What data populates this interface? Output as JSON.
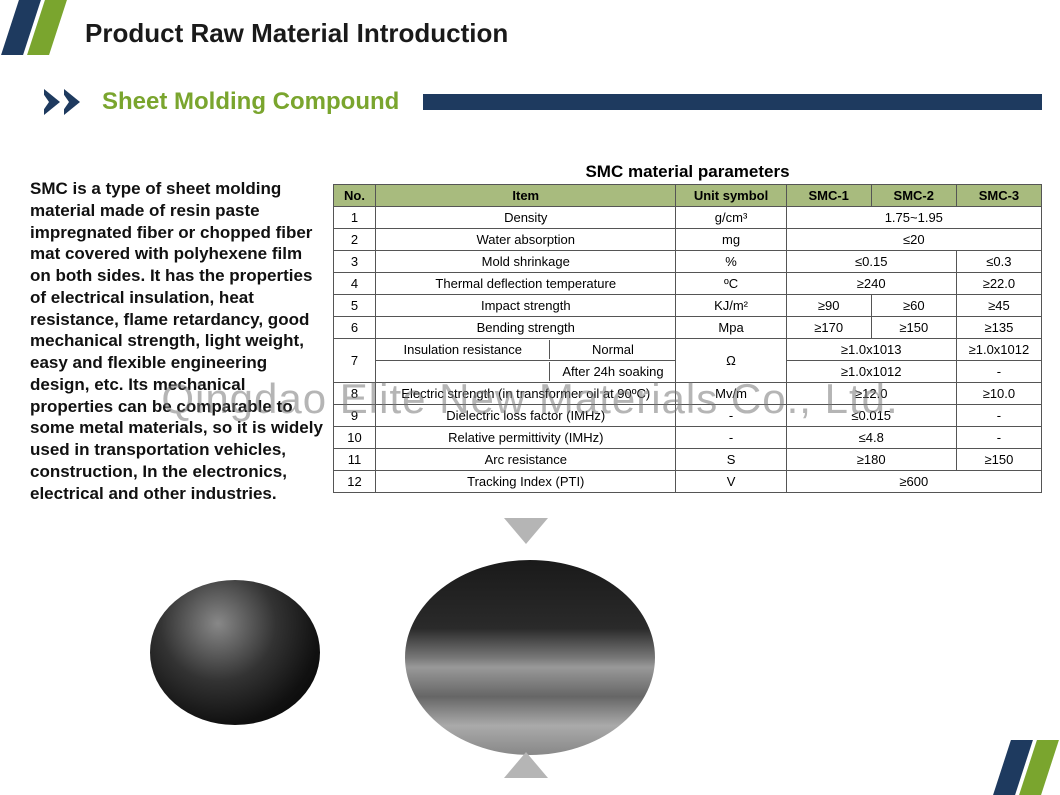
{
  "header": {
    "page_title": "Product Raw Material Introduction",
    "section_title": "Sheet Molding Compound",
    "accent_navy": "#1e3a5f",
    "accent_green": "#7aa52e"
  },
  "description": "SMC is a type of sheet molding material  made of resin paste impregnated fiber or  chopped fiber mat covered with polyhexene  film on both sides. It has the properties of electrical insulation,  heat resistance, flame retardancy, good  mechanical strength, light weight, easy and flexible engineering design, etc. Its  mechanical properties can be comparable to  some metal materials, so it is widely used in transportation vehicles, construction, In the  electronics, electrical and other industries.",
  "table": {
    "caption": "SMC material parameters",
    "header_bg": "#a8bb7e",
    "columns": [
      "No.",
      "Item",
      "Unit symbol",
      "SMC-1",
      "SMC-2",
      "SMC-3"
    ],
    "rows": [
      {
        "no": "1",
        "item": "Density",
        "unit": "g/cm³",
        "v": [
          {
            "span": 3,
            "text": "1.75~1.95"
          }
        ]
      },
      {
        "no": "2",
        "item": "Water absorption",
        "unit": "mg",
        "v": [
          {
            "span": 3,
            "text": "≤20"
          }
        ]
      },
      {
        "no": "3",
        "item": "Mold shrinkage",
        "unit": "%",
        "v": [
          {
            "span": 2,
            "text": "≤0.15"
          },
          {
            "span": 1,
            "text": "≤0.3"
          }
        ]
      },
      {
        "no": "4",
        "item": "Thermal deflection temperature",
        "unit": "ºC",
        "v": [
          {
            "span": 2,
            "text": "≥240"
          },
          {
            "span": 1,
            "text": "≥22.0"
          }
        ]
      },
      {
        "no": "5",
        "item": "Impact strength",
        "unit": "KJ/m²",
        "v": [
          {
            "span": 1,
            "text": "≥90"
          },
          {
            "span": 1,
            "text": "≥60"
          },
          {
            "span": 1,
            "text": "≥45"
          }
        ]
      },
      {
        "no": "6",
        "item": "Bending strength",
        "unit": "Mpa",
        "v": [
          {
            "span": 1,
            "text": "≥170"
          },
          {
            "span": 1,
            "text": "≥150"
          },
          {
            "span": 1,
            "text": "≥135"
          }
        ]
      },
      {
        "no": "7",
        "item_group": {
          "label": "Insulation resistance",
          "sub": [
            "Normal",
            "After 24h soaking"
          ]
        },
        "unit": "Ω",
        "v_rows": [
          [
            {
              "span": 2,
              "text": "≥1.0x1013"
            },
            {
              "span": 1,
              "text": "≥1.0x1012"
            }
          ],
          [
            {
              "span": 2,
              "text": "≥1.0x1012"
            },
            {
              "span": 1,
              "text": "-"
            }
          ]
        ]
      },
      {
        "no": "8",
        "item": "Electric strength (in transformer oil at 90ºC)",
        "unit": "Mv/m",
        "v": [
          {
            "span": 2,
            "text": "≥12.0"
          },
          {
            "span": 1,
            "text": "≥10.0"
          }
        ]
      },
      {
        "no": "9",
        "item": "Dielectric loss factor (IMHz)",
        "unit": "-",
        "v": [
          {
            "span": 2,
            "text": "≤0.015"
          },
          {
            "span": 1,
            "text": "-"
          }
        ]
      },
      {
        "no": "10",
        "item": "Relative permittivity (IMHz)",
        "unit": "-",
        "v": [
          {
            "span": 2,
            "text": "≤4.8"
          },
          {
            "span": 1,
            "text": "-"
          }
        ]
      },
      {
        "no": "11",
        "item": "Arc resistance",
        "unit": "S",
        "v": [
          {
            "span": 2,
            "text": "≥180"
          },
          {
            "span": 1,
            "text": "≥150"
          }
        ]
      },
      {
        "no": "12",
        "item": "Tracking Index (PTI)",
        "unit": "V",
        "v": [
          {
            "span": 3,
            "text": "≥600"
          }
        ]
      }
    ]
  },
  "watermark": "Qingdao Elite New Materials Co., Ltd."
}
